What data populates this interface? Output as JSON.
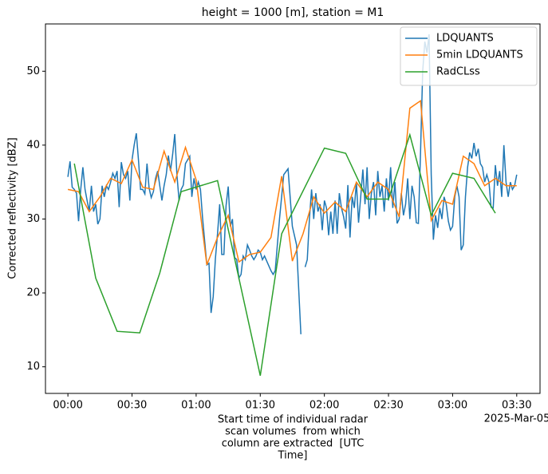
{
  "chart_data": {
    "type": "line",
    "title": "height = 1000 [m], station = M1",
    "ylabel": "Corrected reflectivity [dBZ]",
    "xlabel": [
      "Start time of individual radar",
      "scan volumes  from which",
      "column are extracted  [UTC",
      "Time]"
    ],
    "x_offset_label": "2025-Mar-05",
    "xlim": [
      -10.5,
      220.9
    ],
    "ylim": [
      6.4,
      56.4
    ],
    "xticks": [
      {
        "value": 0,
        "label": "00:00"
      },
      {
        "value": 30,
        "label": "00:30"
      },
      {
        "value": 60,
        "label": "01:00"
      },
      {
        "value": 90,
        "label": "01:30"
      },
      {
        "value": 120,
        "label": "02:00"
      },
      {
        "value": 150,
        "label": "02:30"
      },
      {
        "value": 180,
        "label": "03:00"
      },
      {
        "value": 210,
        "label": "03:30"
      }
    ],
    "yticks": [
      10,
      20,
      30,
      40,
      50
    ],
    "grid": false,
    "legend": "upper right",
    "series": [
      {
        "name": "LDQUANTS",
        "color": "#1f77b4",
        "x": [
          0,
          1,
          2,
          3,
          4,
          5,
          6,
          7,
          8,
          9,
          10,
          11,
          12,
          13,
          14,
          15,
          16,
          17,
          18,
          19,
          20,
          21,
          22,
          23,
          24,
          25,
          26,
          27,
          28,
          29,
          30,
          31,
          32,
          33,
          34,
          35,
          36,
          37,
          38,
          39,
          40,
          41,
          42,
          43,
          44,
          45,
          46,
          47,
          48,
          49,
          50,
          51,
          52,
          53,
          54,
          55,
          56,
          57,
          58,
          59,
          60,
          61,
          62,
          63,
          64,
          65,
          66,
          67,
          68,
          69,
          70,
          71,
          72,
          73,
          74,
          75,
          76,
          77,
          78,
          79,
          80,
          81,
          82,
          83,
          84,
          85,
          86,
          87,
          88,
          89,
          90,
          91,
          92,
          95,
          96,
          97,
          99,
          101,
          103,
          105,
          107,
          109,
          110,
          111,
          112,
          113,
          114,
          115,
          116,
          117,
          118,
          119,
          120,
          121,
          122,
          123,
          124,
          125,
          126,
          127,
          128,
          129,
          130,
          131,
          132,
          133,
          134,
          135,
          136,
          137,
          138,
          139,
          140,
          141,
          142,
          143,
          144,
          145,
          146,
          147,
          148,
          149,
          150,
          151,
          152,
          153,
          154,
          155,
          156,
          157,
          158,
          159,
          160,
          161,
          162,
          163,
          164,
          165,
          166,
          167,
          168,
          169,
          170,
          171,
          172,
          173,
          174,
          175,
          176,
          177,
          178,
          179,
          180,
          181,
          182,
          183,
          184,
          185,
          186,
          187,
          188,
          189,
          190,
          191,
          192,
          193,
          194,
          195,
          196,
          197,
          198,
          199,
          200,
          201,
          202,
          203,
          204,
          205,
          206,
          207,
          208,
          209,
          210
        ],
        "values": [
          35.7,
          37.8,
          34.3,
          34,
          33.5,
          29.7,
          34,
          37,
          34,
          32.5,
          31,
          34.5,
          31,
          32,
          29.3,
          30,
          34.5,
          33,
          34.5,
          34,
          35,
          36.2,
          35.5,
          36.5,
          31.6,
          37.7,
          36,
          35.5,
          36.5,
          32.5,
          38,
          40,
          41.6,
          38,
          34,
          34,
          33.4,
          37.5,
          34.2,
          32.9,
          33.7,
          35.5,
          36.5,
          34.5,
          32.5,
          34.5,
          36,
          38.6,
          36.5,
          38.7,
          41.5,
          36,
          32.5,
          34,
          34.6,
          37.5,
          38,
          38.5,
          33,
          35.5,
          34,
          35,
          34,
          30.2,
          27,
          23.8,
          24,
          17.3,
          19.5,
          24.6,
          28,
          32,
          25.2,
          25.2,
          31.8,
          34.4,
          29,
          30,
          24.8,
          24.5,
          22,
          22.5,
          25,
          24.5,
          26.5,
          25.8,
          25,
          24.5,
          25,
          25.8,
          25.5,
          24.5,
          25,
          23,
          22.5,
          23,
          30,
          36,
          36.8,
          29,
          26.5,
          14.4,
          null,
          23.5,
          24.5,
          30,
          34,
          30,
          33.5,
          31,
          32,
          28.5,
          32.5,
          31.5,
          27.8,
          31,
          28,
          32.5,
          28,
          33.5,
          31.5,
          30.3,
          28.7,
          34.6,
          27.5,
          33,
          31.5,
          35,
          29.5,
          33,
          36.7,
          32,
          37,
          30,
          33.5,
          35,
          30.5,
          36.5,
          33,
          34.5,
          31,
          35.5,
          32.5,
          37,
          31.5,
          35,
          29.4,
          30,
          33.5,
          30.5,
          32,
          35.5,
          30,
          34.5,
          33,
          29.5,
          29.4,
          39,
          50,
          54,
          52.5,
          55,
          36,
          27.2,
          30.5,
          28.8,
          31.5,
          30,
          33,
          32,
          29.7,
          28.5,
          29,
          33,
          34.5,
          33,
          25.8,
          26.5,
          33,
          37,
          39,
          38.2,
          40.3,
          38.5,
          39.5,
          37.5,
          37,
          35,
          36,
          35,
          31.6,
          31.5,
          37.3,
          34.5,
          36.5,
          33,
          40,
          35,
          33,
          35,
          34,
          34.5,
          36
        ]
      },
      {
        "name": "5min LDQUANTS",
        "color": "#ff7f0e",
        "x": [
          0,
          5,
          10,
          15,
          20,
          25,
          30,
          35,
          40,
          45,
          50,
          55,
          60,
          65,
          70,
          75,
          80,
          85,
          90,
          95,
          100,
          105,
          110,
          115,
          120,
          125,
          130,
          135,
          140,
          145,
          150,
          155,
          160,
          165,
          170,
          175,
          180,
          185,
          190,
          195,
          200,
          205,
          210
        ],
        "values": [
          34,
          33.7,
          31,
          33,
          35.5,
          34.8,
          38,
          34.3,
          34,
          39.2,
          35,
          39.7,
          35.3,
          23.8,
          27.5,
          30.5,
          24.2,
          25.2,
          25.5,
          27.5,
          35.8,
          24.3,
          28,
          33,
          30.8,
          32.3,
          31,
          35,
          33,
          35,
          34,
          30.3,
          45,
          46,
          29.8,
          32.5,
          32,
          38.5,
          37.5,
          34.5,
          35.5,
          34.5,
          34.5
        ]
      },
      {
        "name": "RadCLss",
        "color": "#2ca02c",
        "x": [
          3,
          13,
          23,
          33.6,
          43,
          53,
          70,
          90,
          100,
          120,
          130,
          140,
          150,
          160,
          170,
          180,
          190,
          200
        ],
        "values": [
          37.5,
          22,
          14.8,
          14.6,
          22.7,
          33.7,
          35.2,
          8.8,
          28,
          39.6,
          38.9,
          32.7,
          32.7,
          41.4,
          30.5,
          36.2,
          35.5,
          30.8
        ]
      }
    ]
  }
}
